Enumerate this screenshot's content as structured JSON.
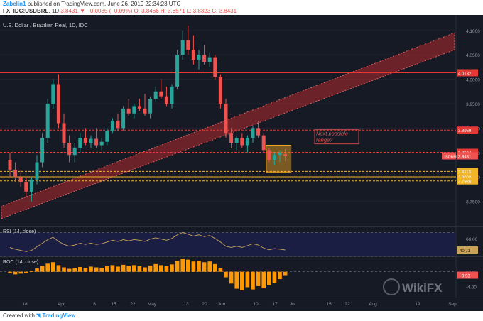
{
  "header": {
    "publisher": "Zabelin1",
    "published_text": "published on TradingView.com, June 26, 2019 22:34:23 UTC",
    "symbol": "FX_IDC:USDBRL",
    "timeframe": "1D",
    "change": "3.8431 ▼ −0.0035 (−0.09%)",
    "ohlc": "O: 3.8466 H: 3.8571 L: 3.8323 C: 3.8431"
  },
  "footer": {
    "created_with": "Created with",
    "brand": "TradingView"
  },
  "watermark": "WikiFX",
  "colors": {
    "background": "#161a25",
    "bull": "#26a69a",
    "bear": "#ef5350",
    "resistance_line": "#e53935",
    "support_line": "#f0b429",
    "channel": "#d32f2f",
    "rsi_line": "#c9a35a",
    "roc_bar": "#ff9800",
    "axis_text": "#9598a1",
    "box": "#f5a623"
  },
  "chart_data": [
    {
      "type": "candlestick",
      "title": "U.S. Dollar / Brazilian Real, 1D, IDC",
      "ylim": [
        3.7,
        4.12
      ],
      "y_ticks": [
        3.75,
        3.8,
        3.85,
        3.9,
        3.95,
        4.0,
        4.05,
        4.1
      ],
      "x_ticks": [
        "18",
        "Apr",
        "8",
        "15",
        "22",
        "May",
        "13",
        "20",
        "Jun",
        "10",
        "17",
        "Jul",
        "15",
        "22",
        "Aug",
        "19",
        "Sep"
      ],
      "last_price_label": "USDBRL",
      "last_price": 3.8431,
      "horizontal_levels": [
        {
          "value": 4.0132,
          "label": "4.0132",
          "color": "#e53935",
          "style": "solid"
        },
        {
          "value": 3.8959,
          "label": "3.8959",
          "color": "#e53935",
          "style": "dashed"
        },
        {
          "value": 3.8504,
          "label": "3.8504",
          "color": "#e53935",
          "style": "dashed"
        },
        {
          "value": 3.8113,
          "label": "3.8113",
          "color": "#f0b429",
          "style": "dashed"
        },
        {
          "value": 3.8003,
          "label": "3.8003",
          "color": "#f0b429",
          "style": "solid"
        },
        {
          "value": 3.792,
          "label": "3.7920",
          "color": "#f0b429",
          "style": "dashed"
        }
      ],
      "channel": {
        "start_lower": 3.715,
        "start_upper": 3.74,
        "end_lower": 4.06,
        "end_upper": 4.095
      },
      "range_box": {
        "top": 3.865,
        "bottom": 3.81
      },
      "annotation": "Next possible range?",
      "candles": [
        {
          "o": 3.835,
          "h": 3.85,
          "l": 3.8,
          "c": 3.815
        },
        {
          "o": 3.815,
          "h": 3.83,
          "l": 3.79,
          "c": 3.8
        },
        {
          "o": 3.8,
          "h": 3.815,
          "l": 3.78,
          "c": 3.79
        },
        {
          "o": 3.79,
          "h": 3.8,
          "l": 3.76,
          "c": 3.77
        },
        {
          "o": 3.77,
          "h": 3.8,
          "l": 3.75,
          "c": 3.795
        },
        {
          "o": 3.795,
          "h": 3.845,
          "l": 3.785,
          "c": 3.83
        },
        {
          "o": 3.83,
          "h": 3.89,
          "l": 3.82,
          "c": 3.88
        },
        {
          "o": 3.88,
          "h": 3.96,
          "l": 3.87,
          "c": 3.95
        },
        {
          "o": 3.95,
          "h": 4.0,
          "l": 3.94,
          "c": 3.99
        },
        {
          "o": 3.99,
          "h": 4.01,
          "l": 3.9,
          "c": 3.91
        },
        {
          "o": 3.91,
          "h": 3.93,
          "l": 3.86,
          "c": 3.87
        },
        {
          "o": 3.87,
          "h": 3.885,
          "l": 3.83,
          "c": 3.845
        },
        {
          "o": 3.845,
          "h": 3.87,
          "l": 3.83,
          "c": 3.86
        },
        {
          "o": 3.86,
          "h": 3.89,
          "l": 3.85,
          "c": 3.88
        },
        {
          "o": 3.88,
          "h": 3.9,
          "l": 3.865,
          "c": 3.87
        },
        {
          "o": 3.87,
          "h": 3.885,
          "l": 3.86,
          "c": 3.878
        },
        {
          "o": 3.878,
          "h": 3.9,
          "l": 3.86,
          "c": 3.865
        },
        {
          "o": 3.865,
          "h": 3.88,
          "l": 3.855,
          "c": 3.872
        },
        {
          "o": 3.872,
          "h": 3.9,
          "l": 3.865,
          "c": 3.895
        },
        {
          "o": 3.895,
          "h": 3.92,
          "l": 3.89,
          "c": 3.915
        },
        {
          "o": 3.915,
          "h": 3.93,
          "l": 3.895,
          "c": 3.9
        },
        {
          "o": 3.9,
          "h": 3.945,
          "l": 3.895,
          "c": 3.94
        },
        {
          "o": 3.94,
          "h": 3.96,
          "l": 3.925,
          "c": 3.93
        },
        {
          "o": 3.93,
          "h": 3.95,
          "l": 3.92,
          "c": 3.945
        },
        {
          "o": 3.945,
          "h": 3.96,
          "l": 3.935,
          "c": 3.94
        },
        {
          "o": 3.94,
          "h": 3.97,
          "l": 3.925,
          "c": 3.93
        },
        {
          "o": 3.93,
          "h": 3.965,
          "l": 3.92,
          "c": 3.96
        },
        {
          "o": 3.96,
          "h": 3.985,
          "l": 3.955,
          "c": 3.975
        },
        {
          "o": 3.975,
          "h": 4.0,
          "l": 3.96,
          "c": 3.965
        },
        {
          "o": 3.965,
          "h": 3.985,
          "l": 3.945,
          "c": 3.95
        },
        {
          "o": 3.95,
          "h": 3.99,
          "l": 3.94,
          "c": 3.985
        },
        {
          "o": 3.985,
          "h": 4.06,
          "l": 3.98,
          "c": 4.05
        },
        {
          "o": 4.05,
          "h": 4.1,
          "l": 4.04,
          "c": 4.08
        },
        {
          "o": 4.08,
          "h": 4.11,
          "l": 4.05,
          "c": 4.06
        },
        {
          "o": 4.06,
          "h": 4.09,
          "l": 4.03,
          "c": 4.04
        },
        {
          "o": 4.04,
          "h": 4.06,
          "l": 4.02,
          "c": 4.05
        },
        {
          "o": 4.05,
          "h": 4.07,
          "l": 4.03,
          "c": 4.035
        },
        {
          "o": 4.035,
          "h": 4.055,
          "l": 4.025,
          "c": 4.045
        },
        {
          "o": 4.045,
          "h": 4.05,
          "l": 4.0,
          "c": 4.005
        },
        {
          "o": 4.005,
          "h": 4.01,
          "l": 3.94,
          "c": 3.95
        },
        {
          "o": 3.95,
          "h": 3.96,
          "l": 3.88,
          "c": 3.89
        },
        {
          "o": 3.89,
          "h": 3.9,
          "l": 3.86,
          "c": 3.87
        },
        {
          "o": 3.87,
          "h": 3.885,
          "l": 3.855,
          "c": 3.88
        },
        {
          "o": 3.88,
          "h": 3.89,
          "l": 3.86,
          "c": 3.865
        },
        {
          "o": 3.865,
          "h": 3.885,
          "l": 3.85,
          "c": 3.88
        },
        {
          "o": 3.88,
          "h": 3.905,
          "l": 3.87,
          "c": 3.9
        },
        {
          "o": 3.9,
          "h": 3.915,
          "l": 3.88,
          "c": 3.885
        },
        {
          "o": 3.885,
          "h": 3.89,
          "l": 3.85,
          "c": 3.855
        },
        {
          "o": 3.855,
          "h": 3.86,
          "l": 3.83,
          "c": 3.835
        },
        {
          "o": 3.835,
          "h": 3.85,
          "l": 3.825,
          "c": 3.845
        },
        {
          "o": 3.845,
          "h": 3.855,
          "l": 3.83,
          "c": 3.85
        },
        {
          "o": 3.8466,
          "h": 3.8571,
          "l": 3.8323,
          "c": 3.8431
        }
      ]
    },
    {
      "type": "line",
      "title": "RSI (14, close)",
      "ylim": [
        30,
        80
      ],
      "y_ticks": [
        60.0
      ],
      "last_value_label": "40.71",
      "levels": [
        70,
        30
      ],
      "values": [
        45,
        42,
        40,
        38,
        40,
        46,
        52,
        58,
        62,
        55,
        50,
        47,
        49,
        52,
        50,
        52,
        50,
        51,
        54,
        57,
        55,
        58,
        56,
        58,
        57,
        55,
        59,
        61,
        59,
        57,
        60,
        66,
        70,
        67,
        64,
        66,
        63,
        65,
        60,
        54,
        47,
        45,
        47,
        45,
        48,
        51,
        49,
        44,
        41,
        43,
        42,
        40.71
      ]
    },
    {
      "type": "bar",
      "title": "ROC (14, close)",
      "ylim": [
        -7,
        4
      ],
      "y_ticks": [
        0.0,
        -4.0
      ],
      "last_value_label": "-0.93",
      "values": [
        -0.4,
        -0.7,
        -0.5,
        -0.3,
        0.3,
        0.9,
        1.6,
        2.2,
        2.6,
        1.8,
        1.2,
        0.8,
        1.0,
        1.3,
        1.1,
        1.4,
        1.2,
        1.1,
        1.5,
        1.8,
        1.4,
        1.9,
        1.6,
        1.8,
        1.5,
        1.2,
        1.7,
        2.1,
        1.8,
        1.5,
        2.0,
        2.9,
        3.6,
        3.3,
        2.8,
        3.0,
        2.6,
        2.8,
        2.1,
        0.9,
        -1.5,
        -3.2,
        -4.6,
        -5.0,
        -4.2,
        -4.8,
        -3.9,
        -4.5,
        -3.6,
        -3.0,
        -2.0,
        -0.93
      ]
    }
  ]
}
